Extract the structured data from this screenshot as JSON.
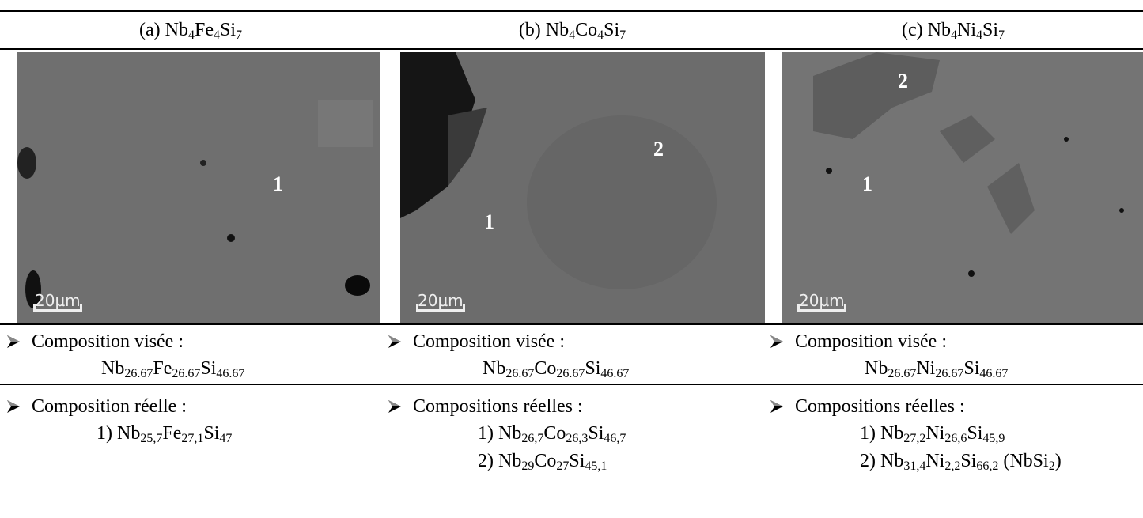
{
  "columns": [
    {
      "label": "(a)",
      "formula": [
        {
          "el": "Nb",
          "sub": "4"
        },
        {
          "el": "Fe",
          "sub": "4"
        },
        {
          "el": "Si",
          "sub": "7"
        }
      ],
      "image": {
        "markers": [
          "1"
        ],
        "scale": "20µm"
      },
      "target_heading": "Composition visée :",
      "target": [
        {
          "el": "Nb",
          "sub": "26.67"
        },
        {
          "el": "Fe",
          "sub": "26.67"
        },
        {
          "el": "Si",
          "sub": "46.67"
        }
      ],
      "real_heading": "Composition réelle :",
      "real": [
        {
          "index": "1)",
          "formula": [
            {
              "el": "Nb",
              "sub": "25,7"
            },
            {
              "el": "Fe",
              "sub": "27,1"
            },
            {
              "el": "Si",
              "sub": "47"
            }
          ]
        }
      ]
    },
    {
      "label": "(b)",
      "formula": [
        {
          "el": "Nb",
          "sub": "4"
        },
        {
          "el": "Co",
          "sub": "4"
        },
        {
          "el": "Si",
          "sub": "7"
        }
      ],
      "image": {
        "markers": [
          "2",
          "1"
        ],
        "scale": "20µm"
      },
      "target_heading": "Composition visée :",
      "target": [
        {
          "el": "Nb",
          "sub": "26.67"
        },
        {
          "el": "Co",
          "sub": "26.67"
        },
        {
          "el": "Si",
          "sub": "46.67"
        }
      ],
      "real_heading": "Compositions réelles :",
      "real": [
        {
          "index": "1)",
          "formula": [
            {
              "el": "Nb",
              "sub": "26,7"
            },
            {
              "el": "Co",
              "sub": "26,3"
            },
            {
              "el": "Si",
              "sub": "46,7"
            }
          ]
        },
        {
          "index": "2)",
          "formula": [
            {
              "el": "Nb",
              "sub": "29"
            },
            {
              "el": "Co",
              "sub": "27"
            },
            {
              "el": "Si",
              "sub": "45,1"
            }
          ]
        }
      ]
    },
    {
      "label": "(c)",
      "formula": [
        {
          "el": "Nb",
          "sub": "4"
        },
        {
          "el": "Ni",
          "sub": "4"
        },
        {
          "el": "Si",
          "sub": "7"
        }
      ],
      "image": {
        "markers": [
          "2",
          "1"
        ],
        "scale": "20µm"
      },
      "target_heading": "Composition visée :",
      "target": [
        {
          "el": "Nb",
          "sub": "26.67"
        },
        {
          "el": "Ni",
          "sub": "26.67"
        },
        {
          "el": "Si",
          "sub": "46.67"
        }
      ],
      "real_heading": "Compositions réelles :",
      "real": [
        {
          "index": "1)",
          "formula": [
            {
              "el": "Nb",
              "sub": "27,2"
            },
            {
              "el": "Ni",
              "sub": "26,6"
            },
            {
              "el": "Si",
              "sub": "45,9"
            }
          ]
        },
        {
          "index": "2)",
          "formula": [
            {
              "el": "Nb",
              "sub": "31,4"
            },
            {
              "el": "Ni",
              "sub": "2,2"
            },
            {
              "el": "Si",
              "sub": "66,2"
            }
          ],
          "note": [
            {
              "el": "(NbSi",
              "sub": "2"
            },
            {
              "el": ")"
            }
          ]
        }
      ]
    }
  ]
}
